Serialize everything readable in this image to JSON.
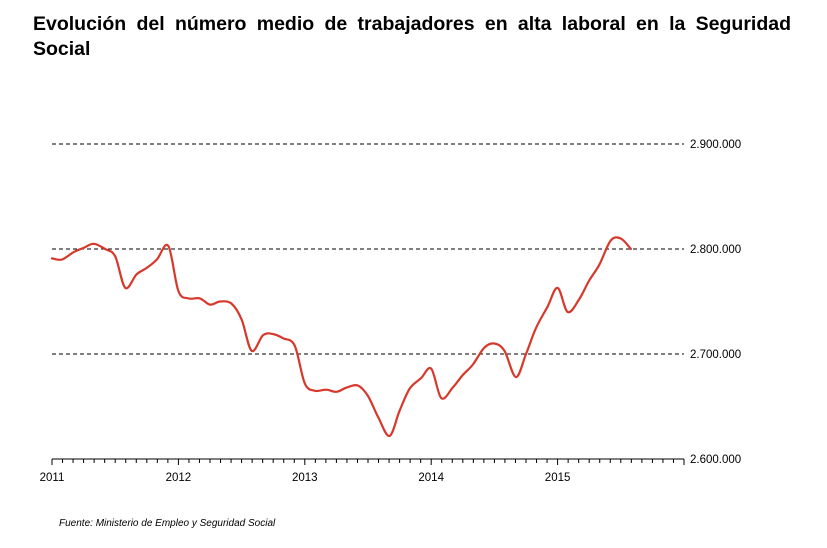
{
  "title": "Evolución del número medio de trabajadores en alta laboral en la Seguridad Social",
  "source": "Fuente: Ministerio de Empleo y Seguridad Social",
  "chart_data": {
    "type": "line",
    "title": "Evolución del número medio de trabajadores en alta laboral en la Seguridad Social",
    "xlabel": "",
    "ylabel": "",
    "x_ticks": [
      "2011",
      "2012",
      "2013",
      "2014",
      "2015"
    ],
    "y_ticks": [
      "2.600.000",
      "2.700.000",
      "2.800.000",
      "2.900.000"
    ],
    "y_tick_values": [
      2600000,
      2700000,
      2800000,
      2900000
    ],
    "ylim": [
      2600000,
      2900000
    ],
    "xlim": [
      2011.0,
      2016.0
    ],
    "grid": "dashed horizontal at labeled ticks",
    "y_axis_position": "right",
    "line_color": "#d7382c",
    "series": [
      {
        "values": [
          [
            2011.0,
            2791000
          ],
          [
            2011.08,
            2790000
          ],
          [
            2011.17,
            2797000
          ],
          [
            2011.25,
            2801000
          ],
          [
            2011.33,
            2805000
          ],
          [
            2011.42,
            2800000
          ],
          [
            2011.5,
            2793000
          ],
          [
            2011.58,
            2763000
          ],
          [
            2011.67,
            2776000
          ],
          [
            2011.75,
            2782000
          ],
          [
            2011.83,
            2790000
          ],
          [
            2011.92,
            2803000
          ],
          [
            2012.0,
            2760000
          ],
          [
            2012.08,
            2753000
          ],
          [
            2012.17,
            2753000
          ],
          [
            2012.25,
            2747000
          ],
          [
            2012.33,
            2750000
          ],
          [
            2012.42,
            2748000
          ],
          [
            2012.5,
            2733000
          ],
          [
            2012.58,
            2703000
          ],
          [
            2012.67,
            2718000
          ],
          [
            2012.75,
            2719000
          ],
          [
            2012.83,
            2715000
          ],
          [
            2012.92,
            2708000
          ],
          [
            2013.0,
            2672000
          ],
          [
            2013.08,
            2665000
          ],
          [
            2013.17,
            2666000
          ],
          [
            2013.25,
            2664000
          ],
          [
            2013.33,
            2668000
          ],
          [
            2013.42,
            2670000
          ],
          [
            2013.5,
            2660000
          ],
          [
            2013.58,
            2640000
          ],
          [
            2013.67,
            2622000
          ],
          [
            2013.75,
            2646000
          ],
          [
            2013.83,
            2667000
          ],
          [
            2013.92,
            2677000
          ],
          [
            2014.0,
            2686000
          ],
          [
            2014.08,
            2658000
          ],
          [
            2014.17,
            2668000
          ],
          [
            2014.25,
            2680000
          ],
          [
            2014.33,
            2690000
          ],
          [
            2014.42,
            2706000
          ],
          [
            2014.5,
            2710000
          ],
          [
            2014.58,
            2703000
          ],
          [
            2014.67,
            2678000
          ],
          [
            2014.75,
            2700000
          ],
          [
            2014.83,
            2725000
          ],
          [
            2014.92,
            2745000
          ],
          [
            2015.0,
            2763000
          ],
          [
            2015.08,
            2740000
          ],
          [
            2015.17,
            2752000
          ],
          [
            2015.25,
            2770000
          ],
          [
            2015.33,
            2785000
          ],
          [
            2015.42,
            2808000
          ],
          [
            2015.5,
            2810000
          ],
          [
            2015.58,
            2800000
          ]
        ]
      }
    ]
  }
}
